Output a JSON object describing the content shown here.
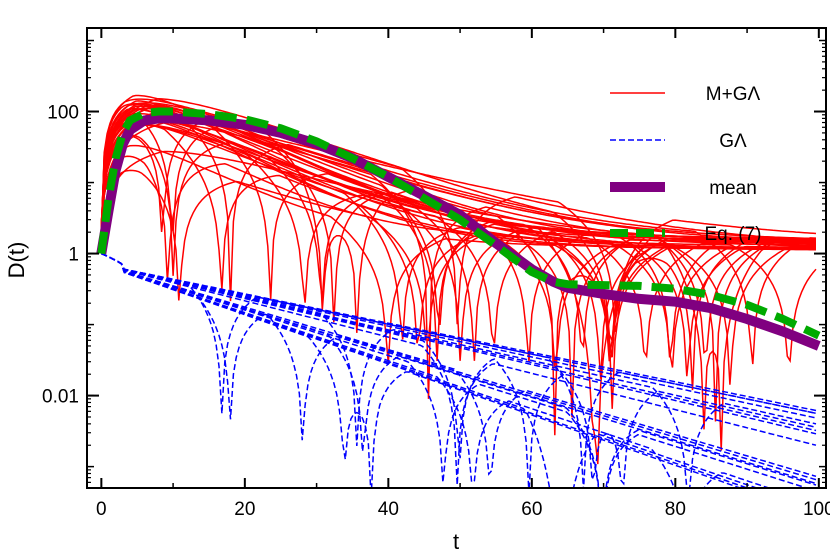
{
  "chart_data": {
    "type": "line",
    "title": "",
    "xlabel": "t",
    "ylabel": "D(t)",
    "xlim": [
      -2,
      101
    ],
    "ylim": [
      0.0005,
      1500
    ],
    "yscale": "log",
    "x_ticks": [
      0,
      20,
      40,
      60,
      80,
      100
    ],
    "x_tick_labels": [
      "0",
      "20",
      "40",
      "60",
      "80",
      "100"
    ],
    "y_ticks": [
      0.01,
      1,
      100
    ],
    "y_tick_labels": [
      "0.01",
      "1",
      "100"
    ],
    "grid": false,
    "legend_position": "top-right",
    "legend": [
      {
        "label": "M+GΛ",
        "style": "thin-solid",
        "color": "#ff0000"
      },
      {
        "label": "GΛ",
        "style": "thin-dashed",
        "color": "#0000ff"
      },
      {
        "label": "mean",
        "style": "thick-solid",
        "color": "#800080"
      },
      {
        "label": "Eq. (7)",
        "style": "thick-dashed",
        "color": "#00aa00"
      }
    ],
    "series": [
      {
        "name": "mean",
        "color": "#800080",
        "x": [
          0,
          1,
          2,
          3,
          4,
          6,
          8,
          10,
          15,
          20,
          25,
          30,
          35,
          40,
          45,
          50,
          55,
          60,
          63,
          65,
          70,
          75,
          80,
          85,
          90,
          95,
          100
        ],
        "y": [
          1,
          4,
          15,
          35,
          55,
          75,
          80,
          80,
          75,
          65,
          50,
          35,
          22,
          12,
          6.5,
          3.5,
          1.4,
          0.6,
          0.4,
          0.33,
          0.27,
          0.23,
          0.21,
          0.17,
          0.12,
          0.08,
          0.05
        ]
      },
      {
        "name": "Eq. (7)",
        "color": "#00aa00",
        "x": [
          0,
          1,
          2,
          3,
          4,
          6,
          8,
          10,
          15,
          20,
          25,
          30,
          35,
          40,
          45,
          50,
          55,
          60,
          63,
          65,
          70,
          75,
          80,
          85,
          90,
          95,
          100
        ],
        "y": [
          1,
          6,
          22,
          50,
          75,
          95,
          100,
          100,
          92,
          78,
          58,
          38,
          22,
          12,
          6,
          3,
          1.3,
          0.55,
          0.4,
          0.37,
          0.36,
          0.35,
          0.32,
          0.26,
          0.19,
          0.12,
          0.07
        ]
      }
    ]
  }
}
